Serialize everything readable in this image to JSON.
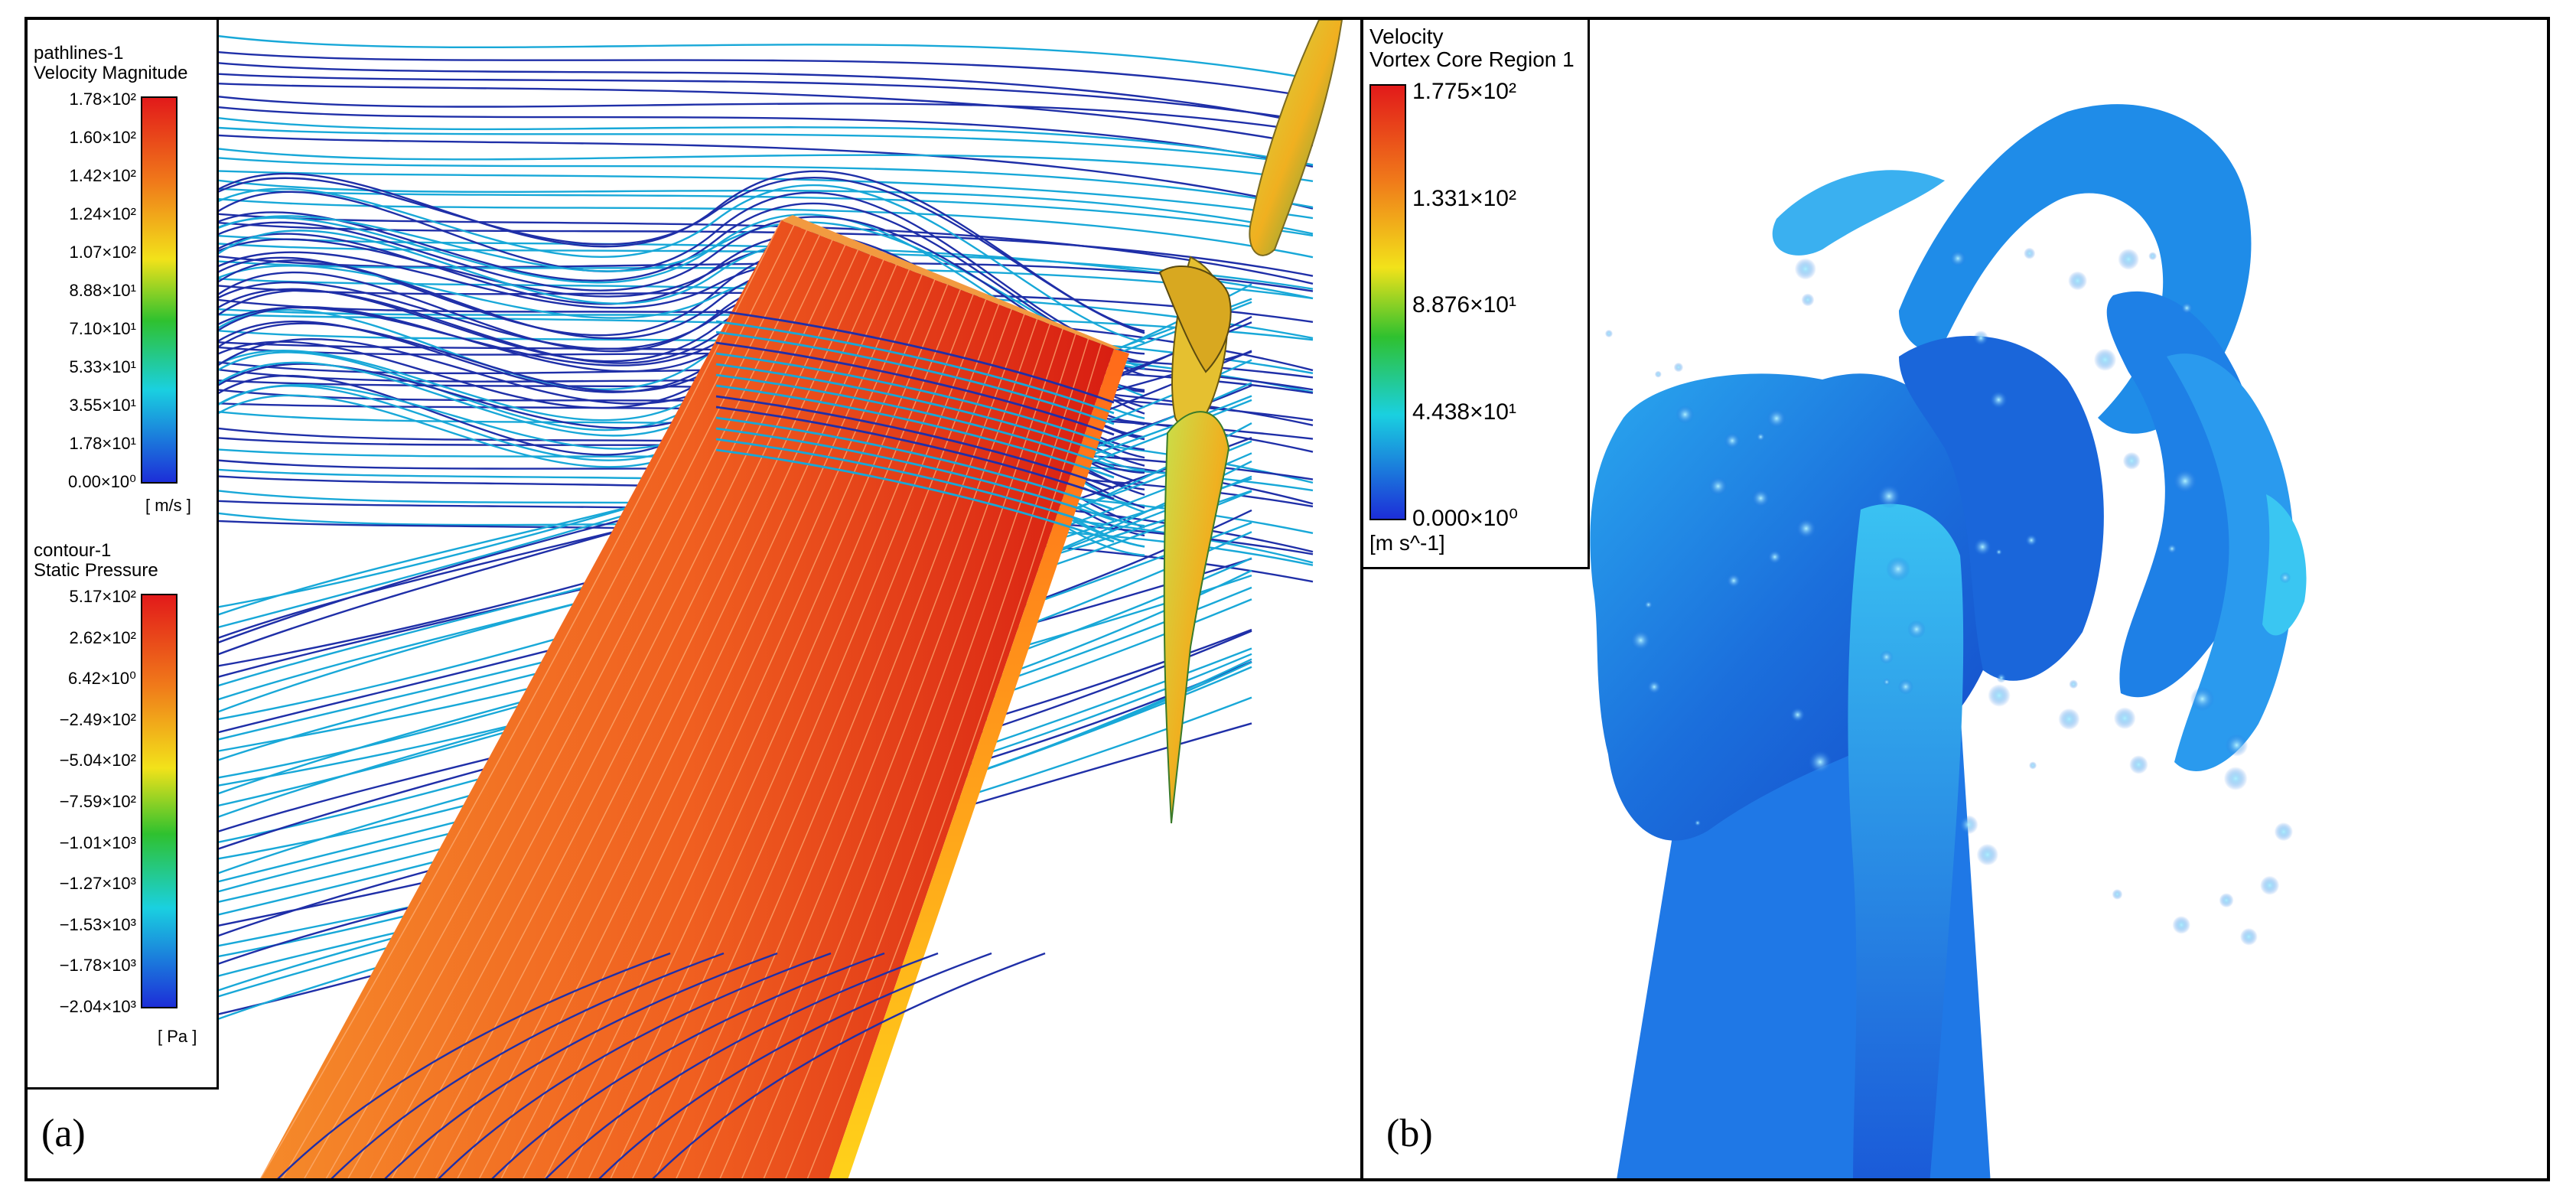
{
  "panel_a": {
    "label": "(a)",
    "legend_velocity": {
      "name": "pathlines-1",
      "quantity": "Velocity Magnitude",
      "unit": "[ m/s ]",
      "ticks": [
        "1.78×10²",
        "1.60×10²",
        "1.42×10²",
        "1.24×10²",
        "1.07×10²",
        "8.88×10¹",
        "7.10×10¹",
        "5.33×10¹",
        "3.55×10¹",
        "1.78×10¹",
        "0.00×10⁰"
      ]
    },
    "legend_pressure": {
      "name": "contour-1",
      "quantity": "Static Pressure",
      "unit": "[ Pa ]",
      "ticks": [
        "5.17×10²",
        "2.62×10²",
        "6.42×10⁰",
        "−2.49×10²",
        "−5.04×10²",
        "−7.59×10²",
        "−1.01×10³",
        "−1.27×10³",
        "−1.53×10³",
        "−1.78×10³",
        "−2.04×10³"
      ]
    }
  },
  "panel_b": {
    "label": "(b)",
    "legend": {
      "quantity": "Velocity",
      "region": "Vortex Core Region 1",
      "unit": "[m s^-1]",
      "ticks": [
        "1.775×10²",
        "1.331×10²",
        "8.876×10¹",
        "4.438×10¹",
        "0.000×10⁰"
      ]
    }
  },
  "colors": {
    "rainbow_top": "#e8201c",
    "rainbow_mid": "#2fc12f",
    "rainbow_bottom": "#1c2ed8",
    "wing_surface": "#ee5a1e",
    "vortex_surface": "#1e7fe0",
    "pathline_blue": "#1f2fa8",
    "pathline_cyan": "#18a8d8"
  }
}
